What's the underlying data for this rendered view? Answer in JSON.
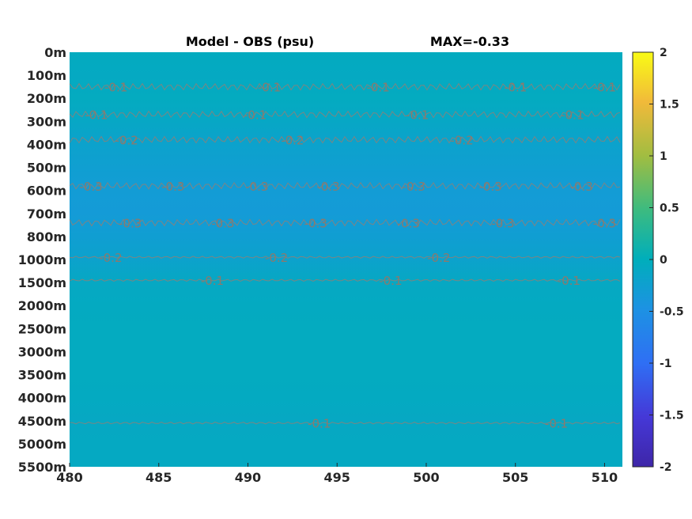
{
  "chart_data": {
    "type": "heatmap",
    "title": "Model - OBS (psu)",
    "subtitle": "MAX=-0.33",
    "xlabel": "",
    "ylabel": "",
    "x_ticks": [
      "480",
      "485",
      "490",
      "495",
      "500",
      "505",
      "510"
    ],
    "xlim": [
      480,
      511
    ],
    "y_ticks": [
      "0m",
      "100m",
      "200m",
      "300m",
      "400m",
      "500m",
      "600m",
      "700m",
      "800m",
      "1000m",
      "1500m",
      "2000m",
      "2500m",
      "3000m",
      "3500m",
      "4000m",
      "4500m",
      "5000m",
      "5500m"
    ],
    "colorbar": {
      "range": [
        -2,
        2
      ],
      "ticks": [
        "2",
        "1.5",
        "1",
        "0.5",
        "0",
        "-0.5",
        "-1",
        "-1.5",
        "-2"
      ],
      "colormap": "parula"
    },
    "depth_profile": [
      {
        "depth": "0m",
        "value": -0.05
      },
      {
        "depth": "100m",
        "value": -0.08
      },
      {
        "depth": "200m",
        "value": -0.06
      },
      {
        "depth": "300m",
        "value": -0.12
      },
      {
        "depth": "400m",
        "value": -0.2
      },
      {
        "depth": "500m",
        "value": -0.26
      },
      {
        "depth": "600m",
        "value": -0.31
      },
      {
        "depth": "700m",
        "value": -0.33
      },
      {
        "depth": "800m",
        "value": -0.27
      },
      {
        "depth": "1000m",
        "value": -0.2
      },
      {
        "depth": "1500m",
        "value": -0.1
      },
      {
        "depth": "2000m",
        "value": -0.07
      },
      {
        "depth": "2500m",
        "value": -0.06
      },
      {
        "depth": "3000m",
        "value": -0.06
      },
      {
        "depth": "3500m",
        "value": -0.06
      },
      {
        "depth": "4000m",
        "value": -0.07
      },
      {
        "depth": "4500m",
        "value": -0.1
      },
      {
        "depth": "5000m",
        "value": -0.08
      },
      {
        "depth": "5500m",
        "value": -0.08
      }
    ],
    "contours": [
      {
        "level": "-0.1",
        "depth_index": 1.5,
        "labels_x": [
          482.6,
          491.2,
          497.3,
          505.0,
          510.0
        ]
      },
      {
        "level": "-0.1",
        "depth_index": 2.7,
        "labels_x": [
          481.5,
          490.4,
          499.5,
          508.2
        ]
      },
      {
        "level": "-0.2",
        "depth_index": 3.8,
        "labels_x": [
          483.2,
          492.5,
          502.0
        ]
      },
      {
        "level": "-0.3",
        "depth_index": 5.8,
        "labels_x": [
          481.2,
          485.8,
          490.5,
          494.5,
          499.3,
          503.6,
          508.7
        ]
      },
      {
        "level": "-0.3",
        "depth_index": 7.4,
        "labels_x": [
          483.4,
          488.6,
          493.8,
          499.0,
          504.3,
          510.0
        ]
      },
      {
        "level": "-0.2",
        "depth_index": 8.9,
        "labels_x": [
          482.3,
          491.6,
          500.7
        ]
      },
      {
        "level": "-0.1",
        "depth_index": 9.9,
        "labels_x": [
          488.0,
          498.0,
          508.0
        ]
      },
      {
        "level": "-0.1",
        "depth_index": 16.1,
        "labels_x": [
          494.0,
          507.3
        ]
      }
    ]
  }
}
